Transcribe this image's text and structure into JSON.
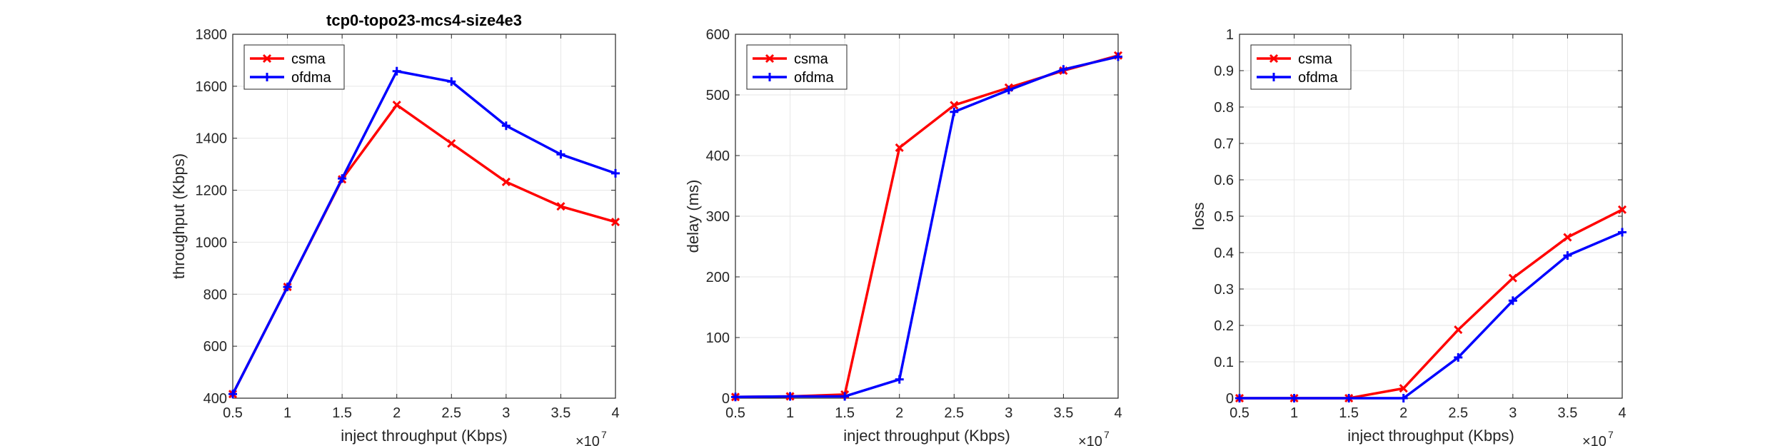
{
  "colors": {
    "csma": "#ff0000",
    "ofdma": "#0000ff",
    "grid": "#e6e6e6",
    "axis": "#262626"
  },
  "chart_data": [
    {
      "type": "line",
      "title": "tcp0-topo23-mcs4-size4e3",
      "xlabel": "inject throughput (Kbps)",
      "ylabel": "throughput (Kbps)",
      "x_exponent": "7",
      "xlim": [
        5000000,
        40000000
      ],
      "ylim": [
        400,
        1800
      ],
      "x": [
        5000000,
        10000000,
        15000000,
        20000000,
        25000000,
        30000000,
        35000000,
        40000000
      ],
      "x_tick_labels": [
        "0.5",
        "1",
        "1.5",
        "2",
        "2.5",
        "3",
        "3.5",
        "4"
      ],
      "y_ticks": [
        400,
        600,
        800,
        1000,
        1200,
        1400,
        1600,
        1800
      ],
      "y_tick_labels": [
        "400",
        "600",
        "800",
        "1000",
        "1200",
        "1400",
        "1600",
        "1800"
      ],
      "grid": true,
      "legend_position": "top-left",
      "series": [
        {
          "name": "csma",
          "color": "#ff0000",
          "marker": "x",
          "values": [
            416,
            828,
            1242,
            1528,
            1380,
            1232,
            1138,
            1078
          ]
        },
        {
          "name": "ofdma",
          "color": "#0000ff",
          "marker": "plus",
          "values": [
            416,
            828,
            1245,
            1658,
            1618,
            1448,
            1338,
            1265
          ]
        }
      ]
    },
    {
      "type": "line",
      "title": "",
      "xlabel": "inject throughput (Kbps)",
      "ylabel": "delay (ms)",
      "x_exponent": "7",
      "xlim": [
        5000000,
        40000000
      ],
      "ylim": [
        0,
        600
      ],
      "x": [
        5000000,
        10000000,
        15000000,
        20000000,
        25000000,
        30000000,
        35000000,
        40000000
      ],
      "x_tick_labels": [
        "0.5",
        "1",
        "1.5",
        "2",
        "2.5",
        "3",
        "3.5",
        "4"
      ],
      "y_ticks": [
        0,
        100,
        200,
        300,
        400,
        500,
        600
      ],
      "y_tick_labels": [
        "0",
        "100",
        "200",
        "300",
        "400",
        "500",
        "600"
      ],
      "grid": true,
      "legend_position": "top-left",
      "series": [
        {
          "name": "csma",
          "color": "#ff0000",
          "marker": "x",
          "values": [
            2,
            3,
            6,
            413,
            483,
            512,
            540,
            565
          ]
        },
        {
          "name": "ofdma",
          "color": "#0000ff",
          "marker": "plus",
          "values": [
            2,
            3,
            3,
            31,
            472,
            508,
            542,
            563
          ]
        }
      ]
    },
    {
      "type": "line",
      "title": "",
      "xlabel": "inject throughput (Kbps)",
      "ylabel": "loss",
      "x_exponent": "7",
      "xlim": [
        5000000,
        40000000
      ],
      "ylim": [
        0,
        1
      ],
      "x": [
        5000000,
        10000000,
        15000000,
        20000000,
        25000000,
        30000000,
        35000000,
        40000000
      ],
      "x_tick_labels": [
        "0.5",
        "1",
        "1.5",
        "2",
        "2.5",
        "3",
        "3.5",
        "4"
      ],
      "y_ticks": [
        0,
        0.1,
        0.2,
        0.3,
        0.4,
        0.5,
        0.6,
        0.7,
        0.8,
        0.9,
        1
      ],
      "y_tick_labels": [
        "0",
        "0.1",
        "0.2",
        "0.3",
        "0.4",
        "0.5",
        "0.6",
        "0.7",
        "0.8",
        "0.9",
        "1"
      ],
      "grid": true,
      "legend_position": "top-left",
      "series": [
        {
          "name": "csma",
          "color": "#ff0000",
          "marker": "x",
          "values": [
            0,
            0,
            0,
            0.027,
            0.188,
            0.33,
            0.442,
            0.518
          ]
        },
        {
          "name": "ofdma",
          "color": "#0000ff",
          "marker": "plus",
          "values": [
            0,
            0,
            0,
            0,
            0.112,
            0.268,
            0.392,
            0.456
          ]
        }
      ]
    }
  ]
}
